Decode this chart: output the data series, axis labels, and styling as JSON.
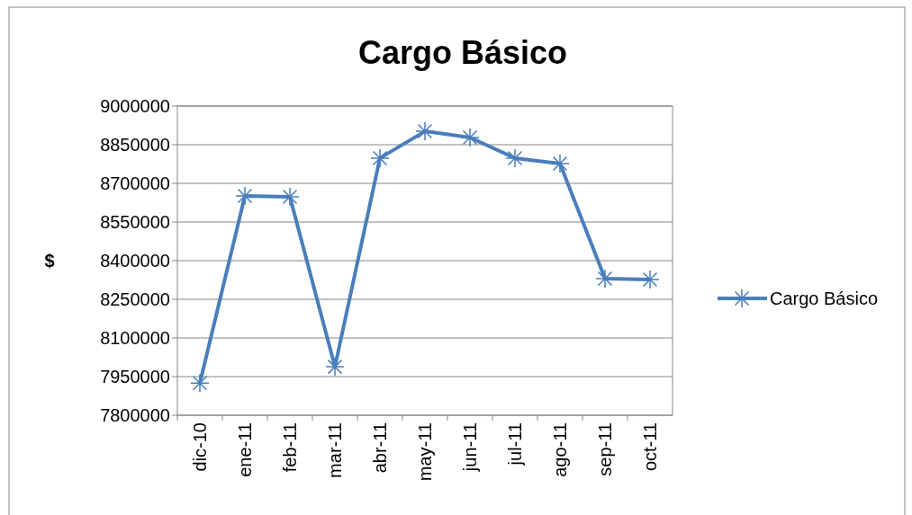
{
  "chart_data": {
    "type": "line",
    "title": "Cargo Básico",
    "ylabel": "$",
    "categories": [
      "dic-10",
      "ene-11",
      "feb-11",
      "mar-11",
      "abr-11",
      "may-11",
      "jun-11",
      "jul-11",
      "ago-11",
      "sep-11",
      "oct-11"
    ],
    "series": [
      {
        "name": "Cargo Básico",
        "color": "#4a7ebb",
        "values": [
          7925000,
          8651000,
          8648000,
          7988000,
          8798000,
          8902000,
          8878000,
          8798000,
          8777000,
          8330000,
          8327000
        ]
      }
    ],
    "ylim": [
      7800000,
      9000000
    ],
    "yticks": [
      7800000,
      7950000,
      8100000,
      8250000,
      8400000,
      8550000,
      8700000,
      8850000,
      9000000
    ],
    "grid": "y",
    "legend": "right",
    "marker": "cross",
    "line_style": "solid"
  }
}
